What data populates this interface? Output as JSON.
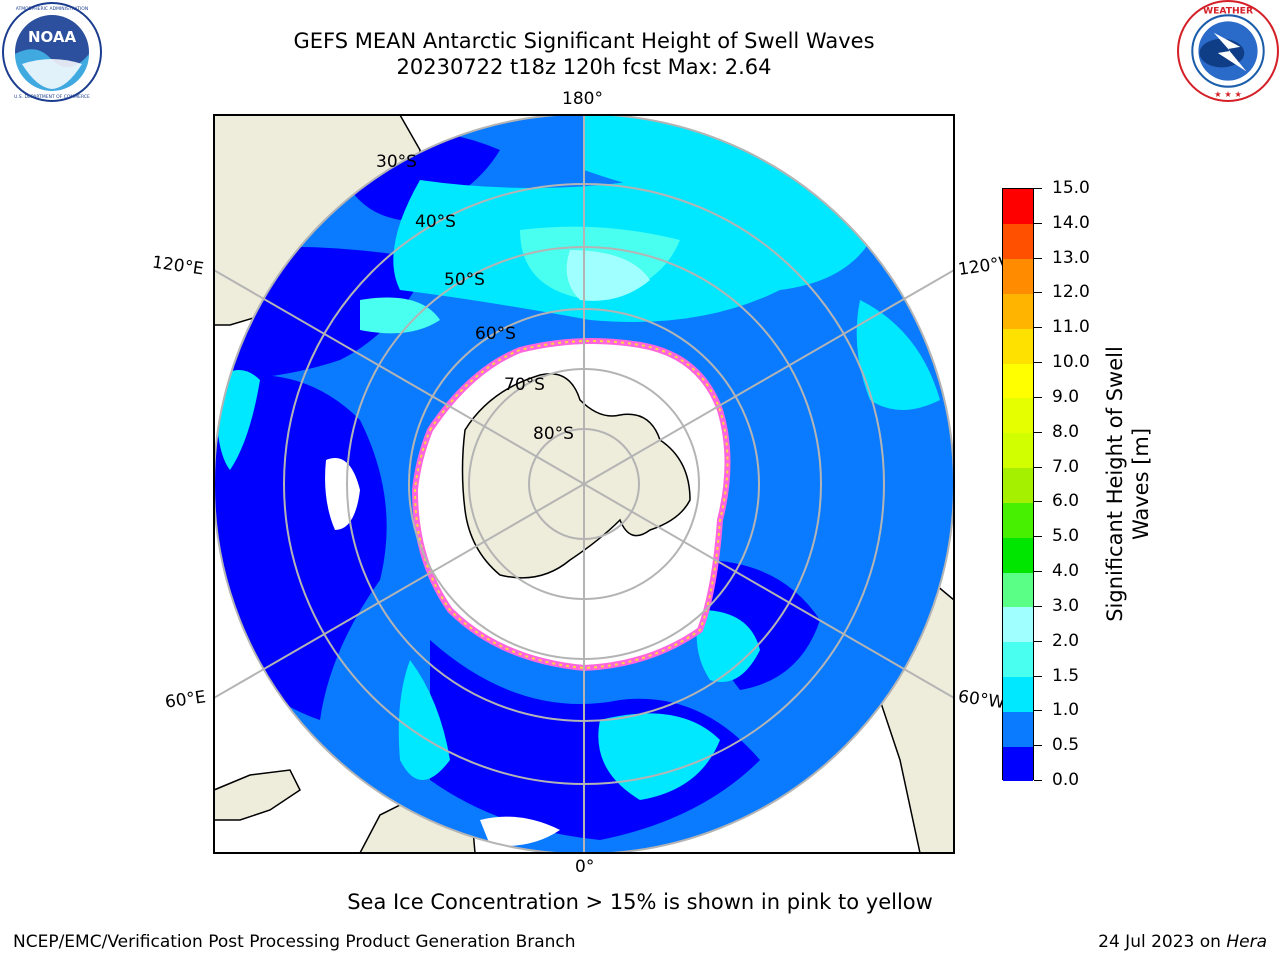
{
  "title": {
    "line1": "GEFS MEAN Antarctic Significant Height of Swell Waves",
    "line2": "20230722 t18z 120h fcst   Max: 2.64"
  },
  "logos": {
    "left": {
      "icon": "noaa-logo",
      "text": "NOAA",
      "ring_text": "NATIONAL OCEANIC AND ATMOSPHERIC ADMINISTRATION · U.S. DEPARTMENT OF COMMERCE"
    },
    "right": {
      "icon": "nws-logo",
      "ring_text": "NATIONAL WEATHER SERVICE"
    }
  },
  "map": {
    "projection": "south polar stereographic",
    "background_color": "#ffffff",
    "land_color": "#eeecdb",
    "grid_color": "#b4b4b4",
    "longitude_labels": {
      "top": "180°",
      "bottom": "0°",
      "upper_left": "120°E",
      "upper_right": "120°W",
      "lower_left": "60°E",
      "lower_right": "60°W"
    },
    "latitude_labels": [
      "30°S",
      "40°S",
      "50°S",
      "60°S",
      "70°S",
      "80°S"
    ],
    "ice_colors": [
      "#ff66dd",
      "#ffd640",
      "#ffee66"
    ]
  },
  "colorbar": {
    "title_line1": "Significant Height of Swell",
    "title_line2": "Waves [m]",
    "ticks": [
      "0.0",
      "0.5",
      "1.0",
      "1.5",
      "2.0",
      "3.0",
      "4.0",
      "5.0",
      "6.0",
      "7.0",
      "8.0",
      "9.0",
      "10.0",
      "11.0",
      "12.0",
      "13.0",
      "14.0",
      "15.0"
    ],
    "colors": [
      "#0000ff",
      "#0a7bff",
      "#00e8ff",
      "#48fff0",
      "#a0ffff",
      "#5aff86",
      "#00e600",
      "#46f000",
      "#a4f000",
      "#d2ff00",
      "#e6ff00",
      "#ffff00",
      "#ffe100",
      "#ffb400",
      "#ff8c00",
      "#ff5000",
      "#ff0000"
    ]
  },
  "note": "Sea Ice Concentration > 15% is shown in pink to yellow",
  "footer": {
    "left": "NCEP/EMC/Verification Post Processing Product Generation Branch",
    "right_prefix": "24 Jul 2023 on ",
    "right_machine": "Hera"
  }
}
